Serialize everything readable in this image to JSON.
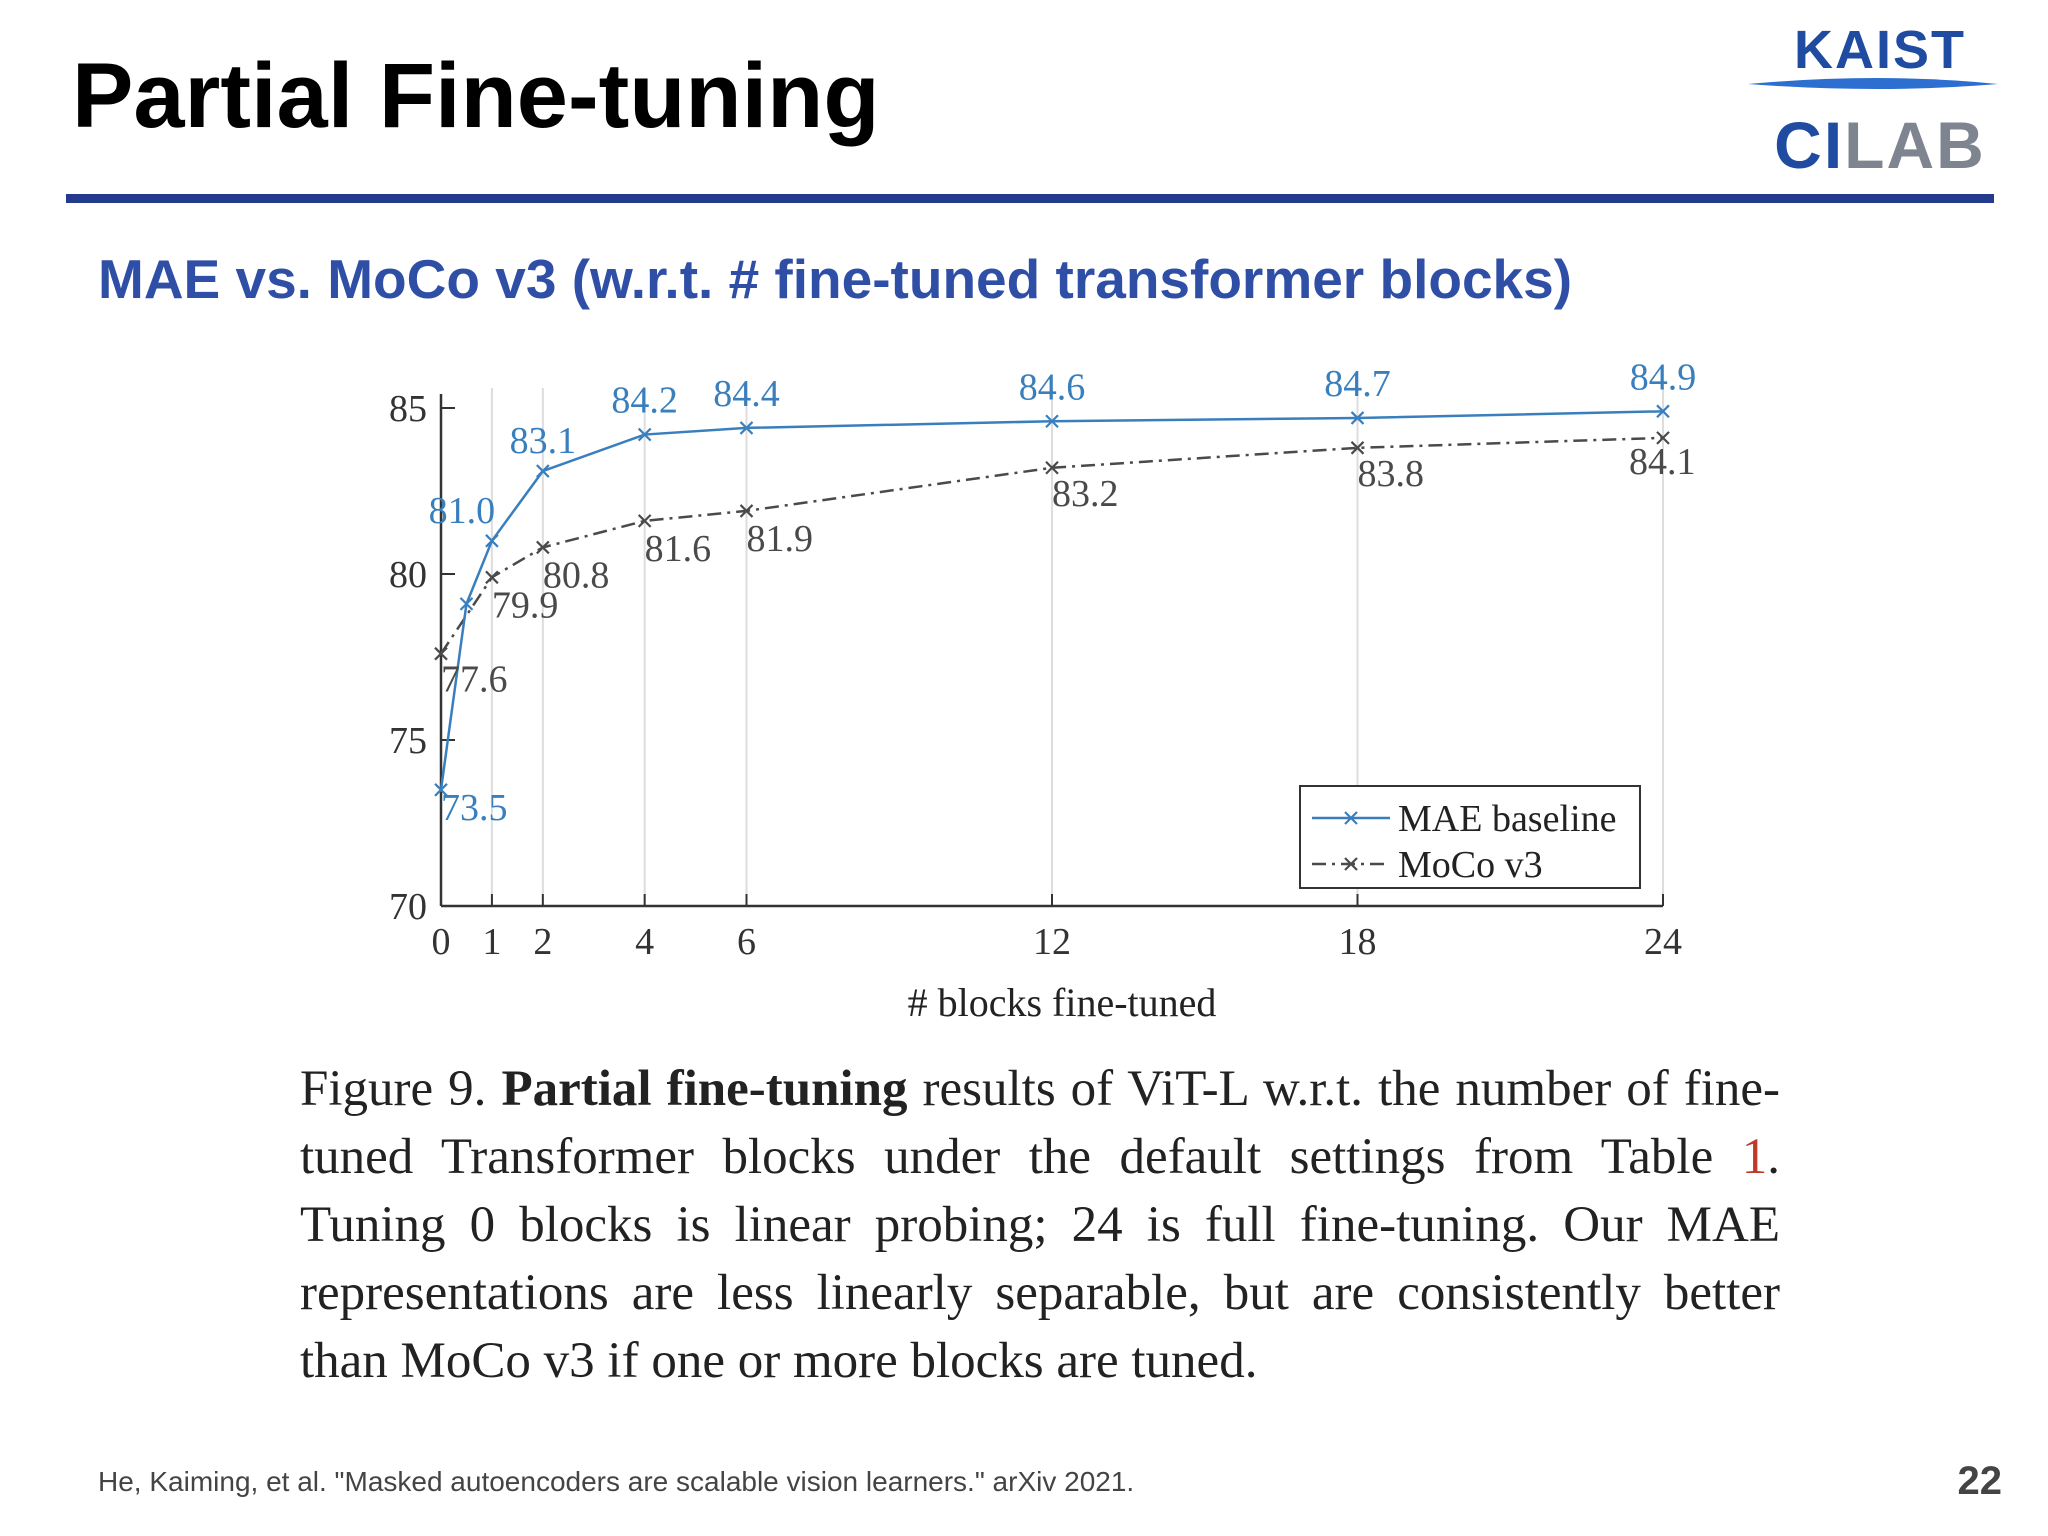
{
  "slide": {
    "title": "Partial Fine-tuning",
    "subtitle": "MAE vs. MoCo v3 (w.r.t. # fine-tuned transformer blocks)",
    "logo_top": "KAIST",
    "logo_bottom_c": "C",
    "logo_bottom_i": "I",
    "logo_bottom_rest": "LAB",
    "citation": "He, Kaiming, et al. \"Masked autoencoders are scalable vision learners.\" arXiv 2021.",
    "page_number": "22",
    "colors": {
      "title_rule": "#243a8c",
      "subtitle": "#2f4fa6",
      "logo_blue": "#1f4ba0",
      "logo_gray": "#7f8590"
    }
  },
  "caption": {
    "prefix": "Figure 9. ",
    "bold": "Partial fine-tuning",
    "part1": " results of ViT-L w.r.t. the number of fine-tuned Transformer blocks under the default settings from Table ",
    "ref": "1",
    "part2": ". Tuning 0 blocks is linear probing; 24 is full fine-tuning. Our MAE representations are less linearly separable, but are consistently better than MoCo v3 if one or more blocks are tuned."
  },
  "chart_data": {
    "type": "line",
    "xlabel": "# blocks fine-tuned",
    "ylabel": "",
    "x": [
      0,
      1,
      2,
      4,
      6,
      12,
      18,
      24
    ],
    "x_ticks": [
      0,
      1,
      2,
      4,
      6,
      12,
      18,
      24
    ],
    "y_ticks": [
      70,
      75,
      80,
      85
    ],
    "xlim": [
      0,
      24
    ],
    "ylim": [
      70,
      85
    ],
    "grid": "vertical lines at x ticks",
    "legend_position": "bottom-right",
    "series": [
      {
        "name": "MAE baseline",
        "values": [
          73.5,
          79.1,
          81.0,
          83.1,
          84.2,
          84.4,
          84.6,
          84.7,
          84.9
        ],
        "x": [
          0,
          0.5,
          1,
          2,
          4,
          6,
          12,
          18,
          24
        ],
        "labeled_points": [
          73.5,
          81.0,
          83.1,
          84.2,
          84.4,
          84.6,
          84.7,
          84.9
        ],
        "labels": [
          "73.5",
          "81.0",
          "83.1",
          "84.2",
          "84.4",
          "84.6",
          "84.7",
          "84.9"
        ],
        "label_x": [
          0,
          1,
          2,
          4,
          6,
          12,
          18,
          24
        ],
        "color": "#3a7fbd",
        "style": "solid"
      },
      {
        "name": "MoCo v3",
        "values": [
          77.6,
          79.9,
          80.8,
          81.6,
          81.9,
          83.2,
          83.8,
          84.1
        ],
        "x": [
          0,
          1,
          2,
          4,
          6,
          12,
          18,
          24
        ],
        "labels": [
          "77.6",
          "79.9",
          "80.8",
          "81.6",
          "81.9",
          "83.2",
          "83.8",
          "84.1"
        ],
        "label_x": [
          0,
          1,
          2,
          4,
          6,
          12,
          18,
          24
        ],
        "color": "#4a4a4a",
        "style": "dashdot"
      }
    ]
  }
}
